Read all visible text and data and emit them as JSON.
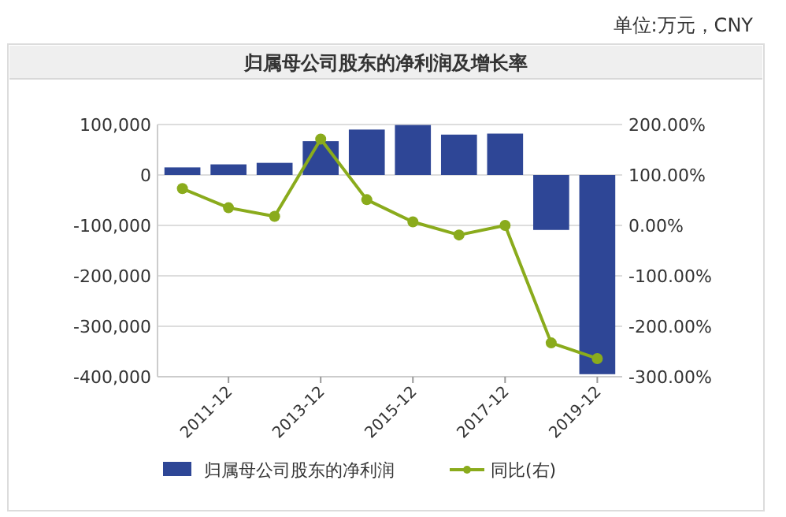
{
  "chart_data": {
    "type": "bar",
    "title": "归属母公司股东的净利润及增长率",
    "annotations": [
      "单位:万元，CNY"
    ],
    "categories": [
      null,
      "2011-12",
      null,
      "2013-12",
      null,
      "2015-12",
      null,
      "2017-12",
      null,
      "2019-12"
    ],
    "series": [
      {
        "name": "归属母公司股东的净利润",
        "color": "#2e4696",
        "values": [
          15000,
          21000,
          24000,
          67000,
          90000,
          99000,
          80000,
          82000,
          -109000,
          -395000
        ]
      },
      {
        "name": "同比(右)",
        "type": "line",
        "axis": "y2",
        "color": "#8aab1c",
        "values": [
          73,
          35,
          18,
          171,
          51,
          7,
          -19,
          0,
          -233,
          -264
        ]
      }
    ],
    "ylim": [
      -400000,
      100000
    ],
    "yticks": [
      {
        "value": -400000,
        "label": "-400,000"
      },
      {
        "value": -300000,
        "label": "-300,000"
      },
      {
        "value": -200000,
        "label": "-200,000"
      },
      {
        "value": -100000,
        "label": "-100,000"
      },
      0,
      {
        "value": 100000,
        "label": "100,000"
      }
    ],
    "y2lim": [
      -300,
      200
    ],
    "y2ticks": [
      {
        "value": -300,
        "label": "-300.00%"
      },
      {
        "value": -200,
        "label": "-200.00%"
      },
      {
        "value": -100,
        "label": "-100.00%"
      },
      {
        "value": 0,
        "label": "0.00%"
      },
      {
        "value": 100,
        "label": "100.00%"
      },
      {
        "value": 200,
        "label": "200.00%"
      }
    ],
    "grid": "y",
    "legend": "bottom",
    "marker": "circle",
    "line_style": "solid"
  }
}
